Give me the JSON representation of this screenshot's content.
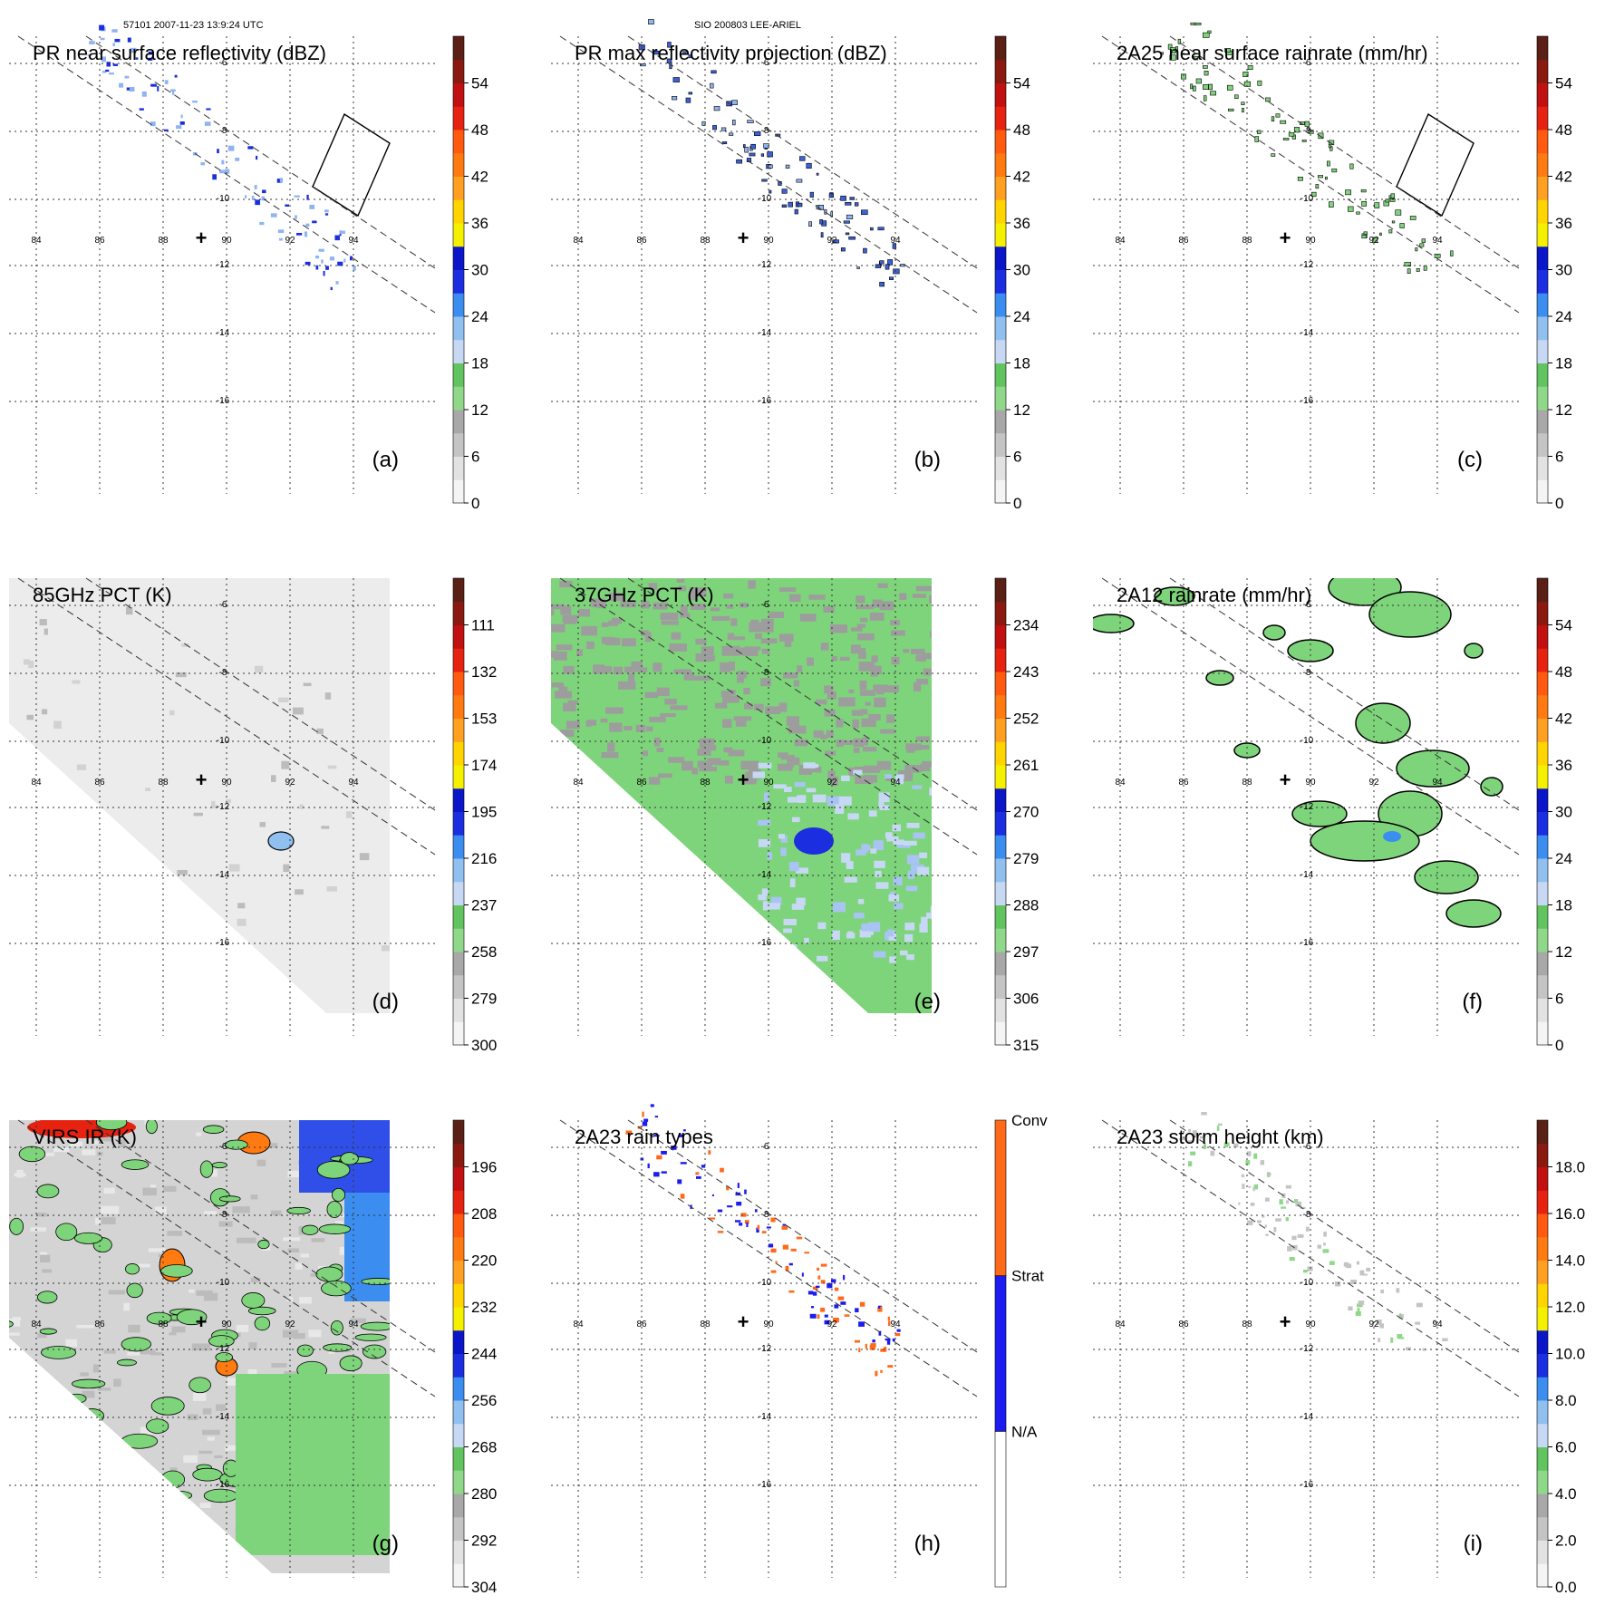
{
  "header": {
    "left": "57101 2007-11-23 13:9:24 UTC",
    "center": "SIO 200803 LEE-ARIEL"
  },
  "map": {
    "lon_ticks": [
      "84",
      "86",
      "88",
      "90",
      "92",
      "94"
    ],
    "lat_ticks": [
      "-6",
      "-8",
      "-10",
      "-12",
      "-14",
      "-16"
    ],
    "marker": "+"
  },
  "chart_data": [
    {
      "type": "heatmap",
      "panel": "(a)",
      "title": "PR near surface reflectivity (dBZ)",
      "colorbar": {
        "ticks": [
          "0",
          "6",
          "12",
          "18",
          "24",
          "30",
          "36",
          "42",
          "48",
          "54"
        ],
        "range": [
          0,
          60
        ],
        "unit": "dBZ"
      },
      "field": "PR swath",
      "box": true
    },
    {
      "type": "heatmap",
      "panel": "(b)",
      "title": "PR max reflectivity projection (dBZ)",
      "colorbar": {
        "ticks": [
          "0",
          "6",
          "12",
          "18",
          "24",
          "30",
          "36",
          "42",
          "48",
          "54"
        ],
        "range": [
          0,
          60
        ],
        "unit": "dBZ"
      },
      "field": "PR swath contoured",
      "box": false
    },
    {
      "type": "heatmap",
      "panel": "(c)",
      "title": "2A25 near surface rainrate (mm/hr)",
      "colorbar": {
        "ticks": [
          "0",
          "6",
          "12",
          "18",
          "24",
          "30",
          "36",
          "42",
          "48",
          "54"
        ],
        "range": [
          0,
          60
        ],
        "unit": "mm/hr"
      },
      "field": "PR swath green",
      "box": true
    },
    {
      "type": "heatmap",
      "panel": "(d)",
      "title": "85GHz PCT (K)",
      "colorbar": {
        "ticks": [
          "300",
          "279",
          "258",
          "237",
          "216",
          "195",
          "174",
          "153",
          "132",
          "111"
        ],
        "range": [
          300,
          90
        ],
        "unit": "K"
      },
      "field": "TMI 85GHz"
    },
    {
      "type": "heatmap",
      "panel": "(e)",
      "title": "37GHz PCT (K)",
      "colorbar": {
        "ticks": [
          "315",
          "306",
          "297",
          "288",
          "279",
          "270",
          "261",
          "252",
          "243",
          "234"
        ],
        "range": [
          315,
          225
        ],
        "unit": "K"
      },
      "field": "TMI 37GHz"
    },
    {
      "type": "heatmap",
      "panel": "(f)",
      "title": "2A12 rainrate (mm/hr)",
      "colorbar": {
        "ticks": [
          "0",
          "6",
          "12",
          "18",
          "24",
          "30",
          "36",
          "42",
          "48",
          "54"
        ],
        "range": [
          0,
          60
        ],
        "unit": "mm/hr"
      },
      "field": "TMI rainrate"
    },
    {
      "type": "heatmap",
      "panel": "(g)",
      "title": "VIRS IR (K)",
      "colorbar": {
        "ticks": [
          "304",
          "292",
          "280",
          "268",
          "256",
          "244",
          "232",
          "220",
          "208",
          "196"
        ],
        "range": [
          304,
          184
        ],
        "unit": "K"
      },
      "field": "VIRS IR"
    },
    {
      "type": "heatmap",
      "panel": "(h)",
      "title": "2A23 rain types",
      "colorbar": {
        "categories": [
          "N/A",
          "Strat",
          "Conv"
        ]
      },
      "field": "rain types"
    },
    {
      "type": "heatmap",
      "panel": "(i)",
      "title": "2A23 storm height (km)",
      "colorbar": {
        "ticks": [
          "0.0",
          "2.0",
          "4.0",
          "6.0",
          "8.0",
          "10.0",
          "12.0",
          "14.0",
          "16.0",
          "18.0"
        ],
        "range": [
          0,
          20
        ],
        "unit": "km"
      },
      "field": "storm height"
    }
  ],
  "colors": {
    "palette": [
      "#f4f4f4",
      "#e2e2e2",
      "#c4c4c4",
      "#a8a8a8",
      "#8fd88a",
      "#62c45f",
      "#c6d8f4",
      "#90c0f0",
      "#3b8eef",
      "#1c2fe0",
      "#0a16c8",
      "#f4f000",
      "#ffd400",
      "#ffa020",
      "#ff7a10",
      "#ff5a10",
      "#e62210",
      "#c01010",
      "#8a1a10",
      "#5a2016"
    ],
    "conv": "#ff6a1a",
    "strat": "#1c1cf0",
    "na": "#ffffff",
    "dashed": "#333333",
    "grid": "#333333"
  }
}
